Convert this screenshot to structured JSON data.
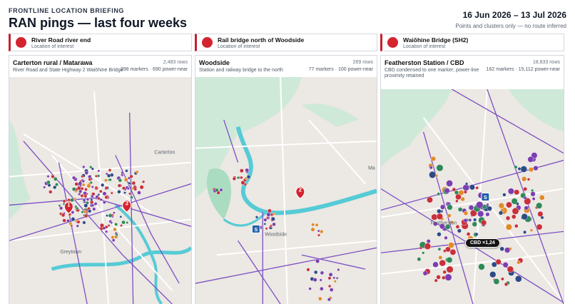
{
  "header": {
    "kicker": "FRONTLINE LOCATION BRIEFING",
    "title": "RAN pings — last four weeks",
    "date_range": "16 Jun 2026 – 13 Jul 2026",
    "note": "Points and clusters only — no route inferred"
  },
  "locations": [
    {
      "name": "River Road river end",
      "type": "Location of interest"
    },
    {
      "name": "Rail bridge north of Woodside",
      "type": "Location of interest"
    },
    {
      "name": "Waiōhine Bridge (SH2)",
      "type": "Location of interest"
    }
  ],
  "panels": [
    {
      "title": "Carterton rural / Matarawa",
      "subtitle": "River Road and State Highway 2 Waiōhine Bridge",
      "rows": "2,483 rows",
      "markers": "298 markers · 690 power-near",
      "place_labels": [
        "Carterton",
        "Greytown"
      ],
      "pins": [
        "1",
        "3"
      ]
    },
    {
      "title": "Woodside",
      "subtitle": "Station and railway bridge to the north",
      "rows": "269 rows",
      "markers": "77 markers · 100 power-near",
      "place_labels": [
        "Woodside",
        "Ma"
      ],
      "pins": [
        "2"
      ],
      "station_icon": "S"
    },
    {
      "title": "Featherston Station / CBD",
      "subtitle": "CBD condensed to one marker; power-line proximity retained",
      "rows": "18,833 rows",
      "markers": "162 markers · 15,112 power-near",
      "place_labels": [
        "Featherston"
      ],
      "station_icon": "S",
      "cluster_label": "CBD ×1,24"
    }
  ],
  "colors": {
    "accent_red": "#d3242f",
    "powerline": "#7b4fc4",
    "river": "#56cbd6",
    "forest": "#8fd1b0",
    "marker_red": "#c8303a",
    "marker_purple": "#7a3fb0",
    "marker_green": "#2e8a57",
    "marker_orange": "#e08a2a",
    "marker_navy": "#2c4a86"
  }
}
